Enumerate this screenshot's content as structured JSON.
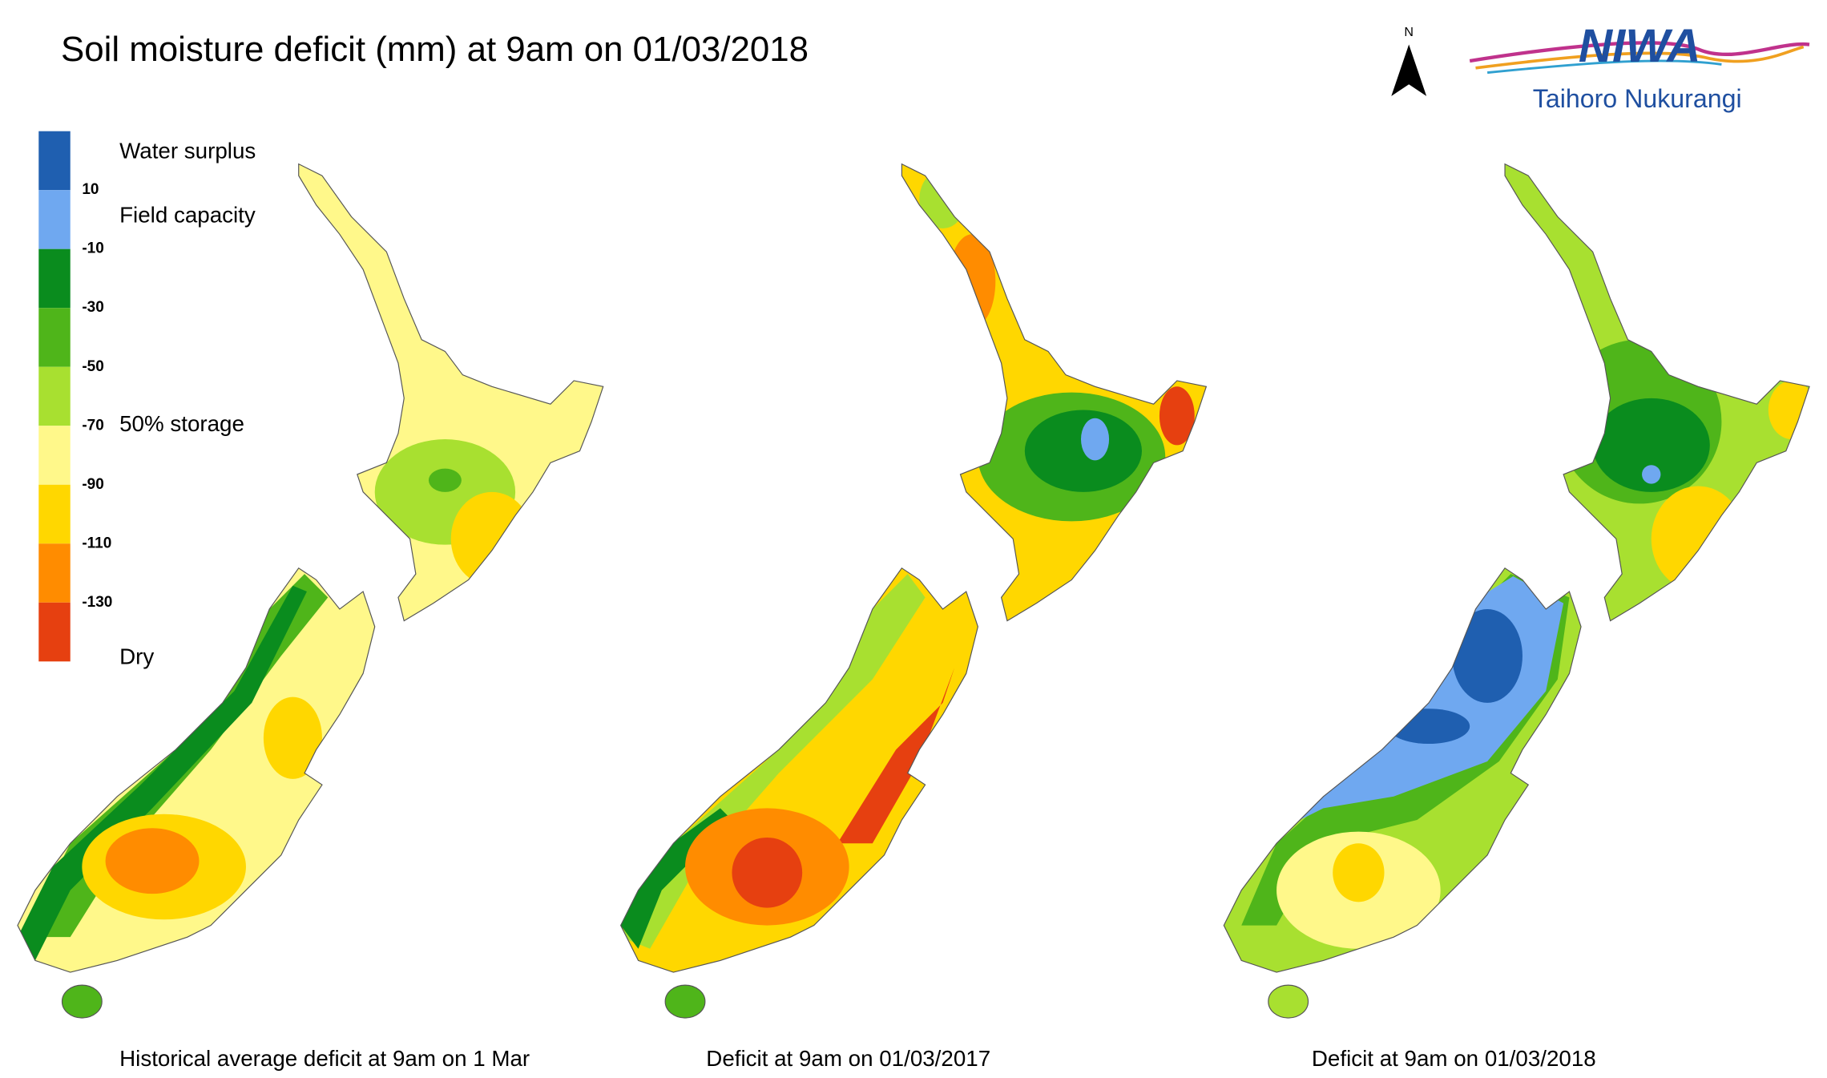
{
  "title": "Soil moisture deficit (mm) at  9am on 01/03/2018",
  "compass": "N",
  "logo": {
    "name": "NIWA",
    "subtitle": "Taihoro Nukurangi"
  },
  "legend": {
    "colors": [
      "#1f5fb0",
      "#6fa8f0",
      "#0a8c1e",
      "#4fb51a",
      "#a8e030",
      "#fff88a",
      "#ffd700",
      "#ff8c00",
      "#e64010"
    ],
    "ticks": [
      "10",
      "-10",
      "-30",
      "-50",
      "-70",
      "-90",
      "-110",
      "-130"
    ],
    "annotations": [
      "Water surplus",
      "Field capacity",
      "50% storage",
      "Dry"
    ]
  },
  "panels": [
    {
      "caption": "Historical average deficit at  9am on 1 Mar"
    },
    {
      "caption": "Deficit at  9am on 01/03/2017"
    },
    {
      "caption": "Deficit at  9am on 01/03/2018"
    }
  ]
}
